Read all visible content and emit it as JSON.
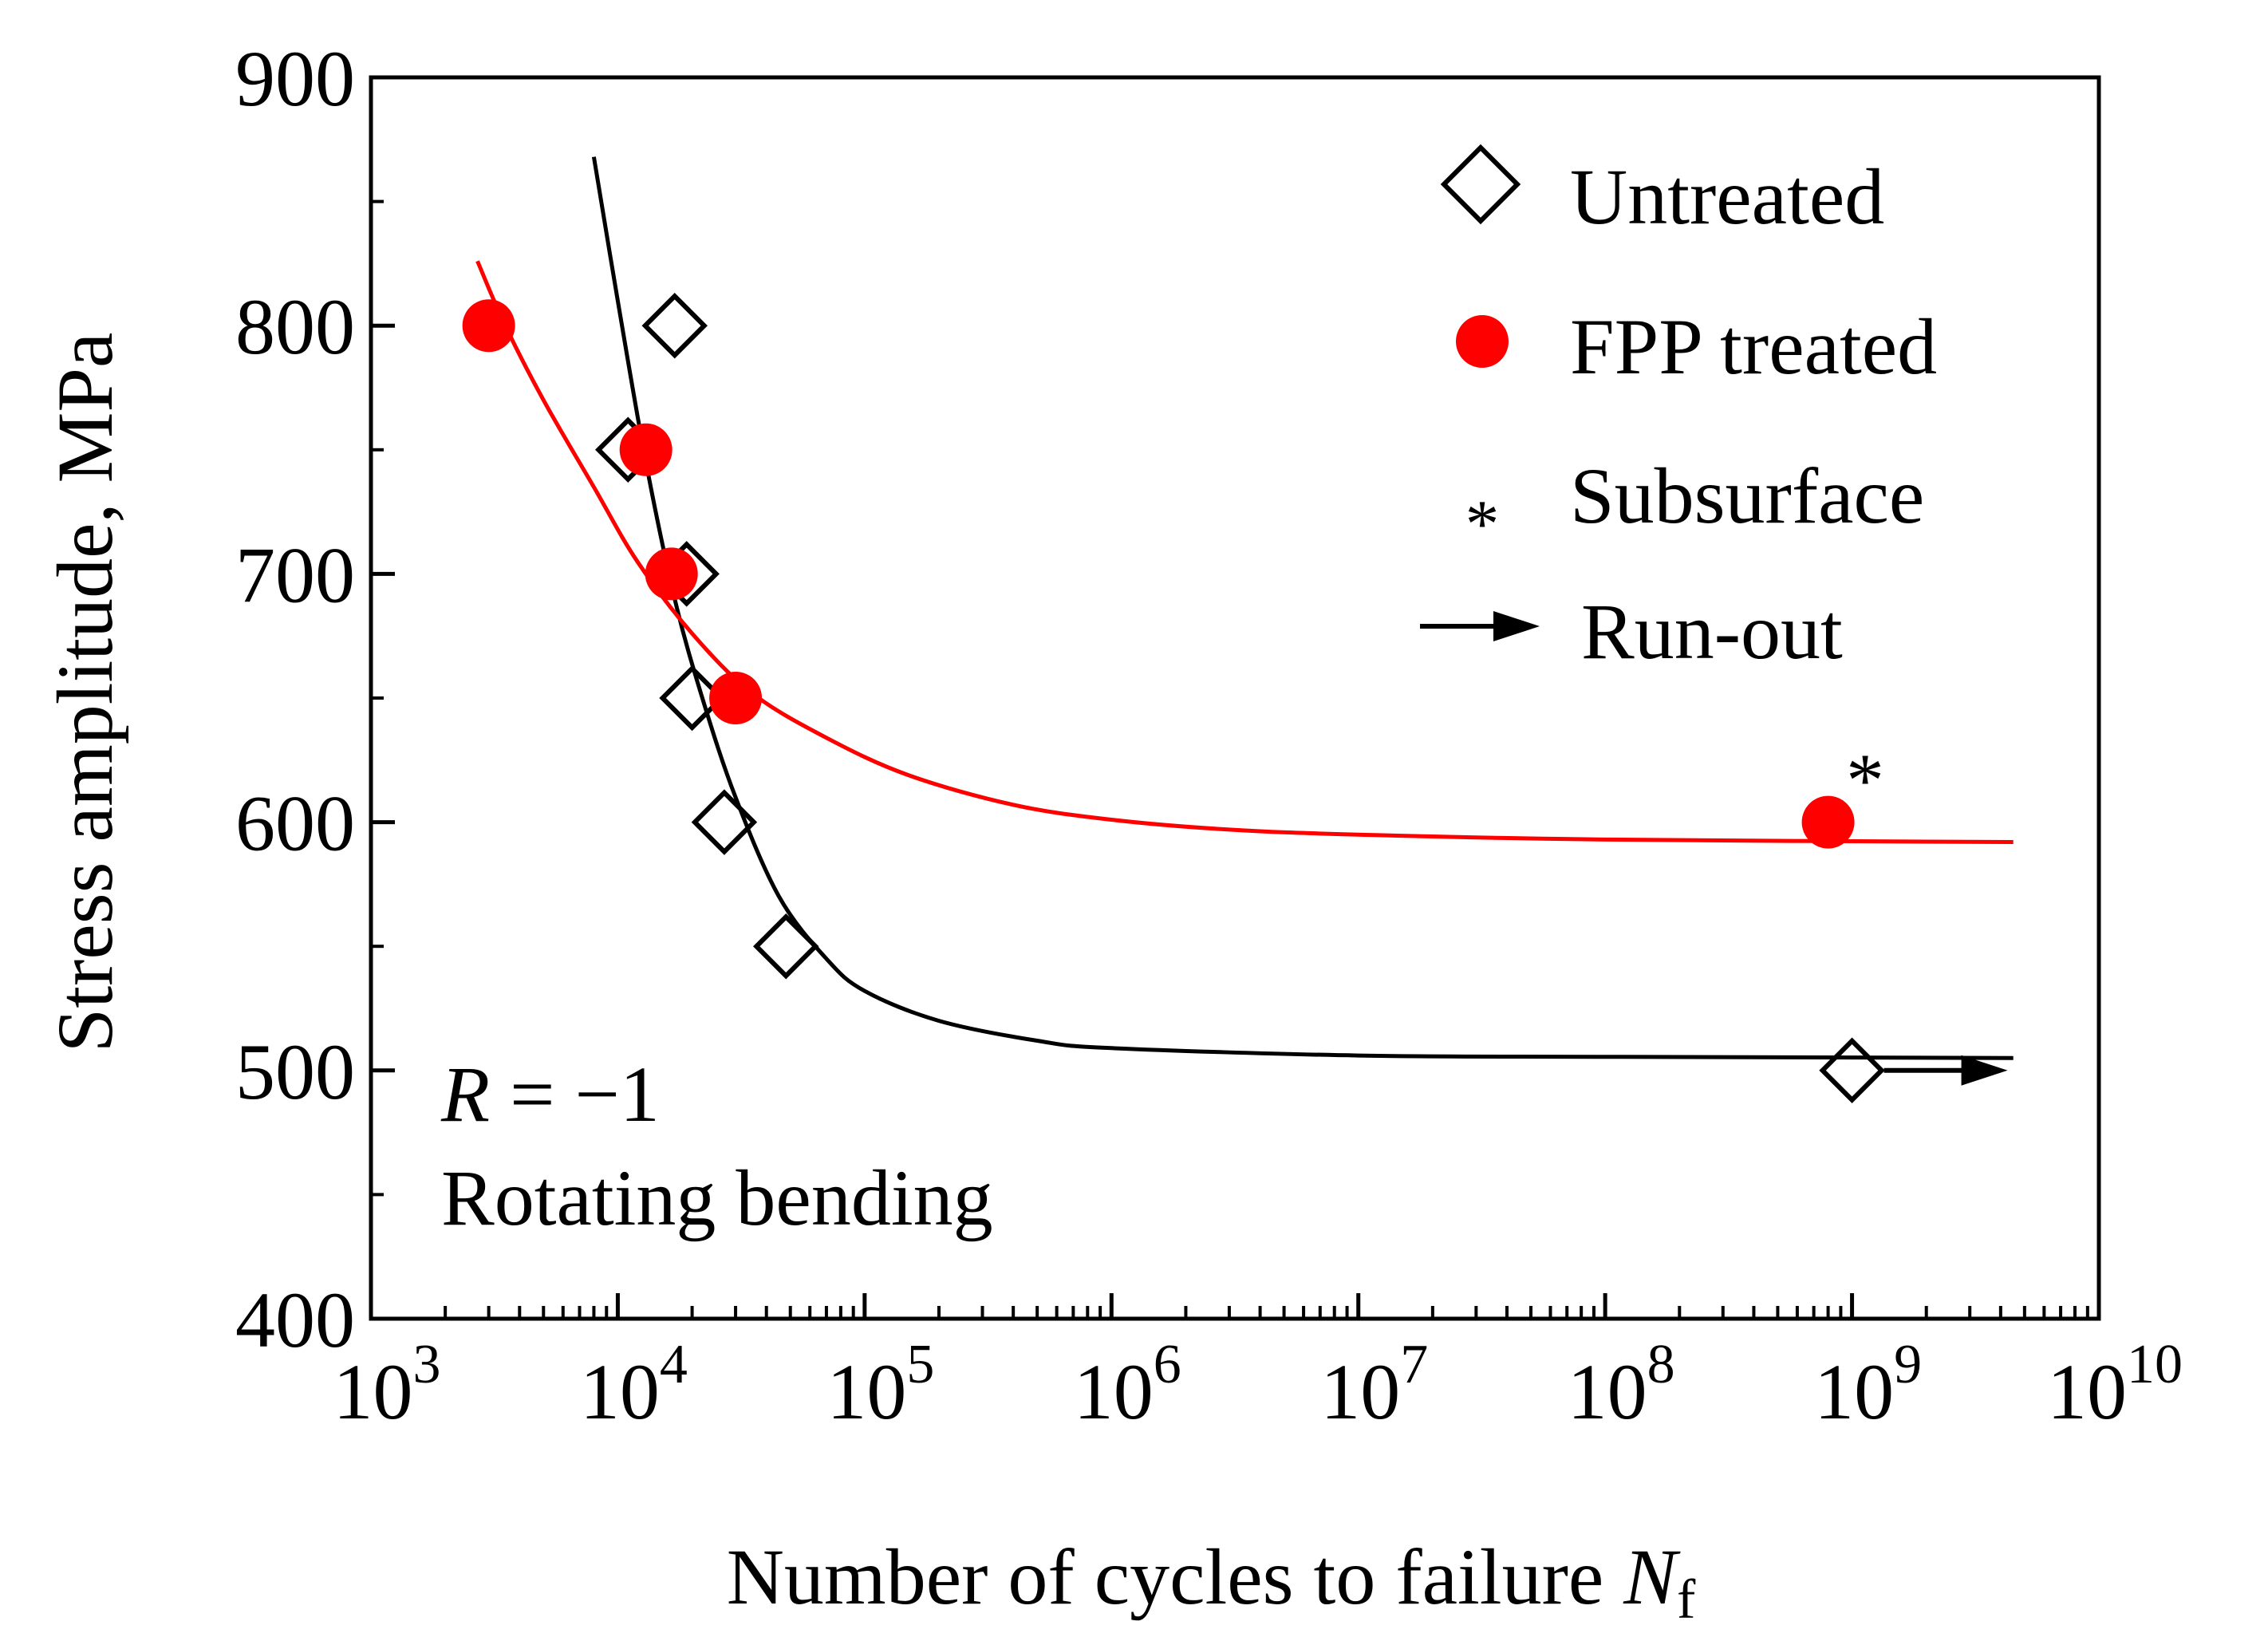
{
  "chart_data": {
    "type": "scatter",
    "title": "",
    "xlabel": "Number of cycles to failure",
    "xlabel_symbol": "N",
    "xlabel_subscript": "f",
    "ylabel": "Stress amplitude, MPa",
    "xscale": "log",
    "xlim": [
      1000,
      10000000000
    ],
    "ylim": [
      400,
      900
    ],
    "x_ticks": [
      {
        "mantissa": "10",
        "exp": "3",
        "value": 1000
      },
      {
        "mantissa": "10",
        "exp": "4",
        "value": 10000
      },
      {
        "mantissa": "10",
        "exp": "5",
        "value": 100000
      },
      {
        "mantissa": "10",
        "exp": "6",
        "value": 1000000
      },
      {
        "mantissa": "10",
        "exp": "7",
        "value": 10000000
      },
      {
        "mantissa": "10",
        "exp": "8",
        "value": 100000000
      },
      {
        "mantissa": "10",
        "exp": "9",
        "value": 1000000000
      },
      {
        "mantissa": "10",
        "exp": "10",
        "value": 10000000000
      }
    ],
    "y_ticks": [
      {
        "label": "400",
        "value": 400
      },
      {
        "label": "500",
        "value": 500
      },
      {
        "label": "600",
        "value": 600
      },
      {
        "label": "700",
        "value": 700
      },
      {
        "label": "800",
        "value": 800
      },
      {
        "label": "900",
        "value": 900
      }
    ],
    "y_minor_ticks": [
      450,
      550,
      650,
      750,
      850
    ],
    "legend_position": "top-right",
    "series": [
      {
        "name": "Untreated",
        "marker": "diamond-open",
        "color": "#000000",
        "points": [
          {
            "x": 17000,
            "y": 800
          },
          {
            "x": 11000,
            "y": 750
          },
          {
            "x": 19000,
            "y": 700
          },
          {
            "x": 20000,
            "y": 650
          },
          {
            "x": 27000,
            "y": 600
          },
          {
            "x": 48000,
            "y": 550
          },
          {
            "x": 1000000000,
            "y": 500,
            "runout": true
          }
        ]
      },
      {
        "name": "FPP treated",
        "marker": "circle-filled",
        "color": "#ff0000",
        "points": [
          {
            "x": 3000,
            "y": 800
          },
          {
            "x": 13000,
            "y": 750
          },
          {
            "x": 16500,
            "y": 700
          },
          {
            "x": 30000,
            "y": 650
          },
          {
            "x": 800000000,
            "y": 600,
            "subsurface": true
          }
        ]
      }
    ],
    "fit_curves": [
      {
        "name": "Untreated fit",
        "color": "#000000",
        "points": [
          {
            "x": 8000,
            "y": 868
          },
          {
            "x": 10000,
            "y": 810
          },
          {
            "x": 13000,
            "y": 745
          },
          {
            "x": 17000,
            "y": 690
          },
          {
            "x": 22000,
            "y": 650
          },
          {
            "x": 30000,
            "y": 610
          },
          {
            "x": 45000,
            "y": 570
          },
          {
            "x": 70000,
            "y": 545
          },
          {
            "x": 100000,
            "y": 532
          },
          {
            "x": 200000,
            "y": 520
          },
          {
            "x": 500000,
            "y": 512
          },
          {
            "x": 1000000,
            "y": 509
          },
          {
            "x": 10000000,
            "y": 506
          },
          {
            "x": 100000000,
            "y": 505.5
          },
          {
            "x": 4500000000,
            "y": 505
          }
        ]
      },
      {
        "name": "FPP treated fit",
        "color": "#ff0000",
        "points": [
          {
            "x": 2700,
            "y": 826
          },
          {
            "x": 3500,
            "y": 800
          },
          {
            "x": 5000,
            "y": 770
          },
          {
            "x": 8000,
            "y": 735
          },
          {
            "x": 12000,
            "y": 705
          },
          {
            "x": 20000,
            "y": 676
          },
          {
            "x": 35000,
            "y": 652
          },
          {
            "x": 70000,
            "y": 634
          },
          {
            "x": 150000,
            "y": 619
          },
          {
            "x": 400000,
            "y": 607
          },
          {
            "x": 1000000,
            "y": 601
          },
          {
            "x": 3000000,
            "y": 597
          },
          {
            "x": 10000000,
            "y": 595
          },
          {
            "x": 100000000,
            "y": 593
          },
          {
            "x": 4500000000,
            "y": 592
          }
        ]
      }
    ],
    "legend": [
      {
        "label": "Untreated",
        "marker": "diamond-open"
      },
      {
        "label": "FPP treated",
        "marker": "circle-filled"
      },
      {
        "label": "Subsurface",
        "marker": "asterisk"
      },
      {
        "label": "Run-out",
        "marker": "arrow"
      }
    ],
    "annotations": {
      "ratio_symbol": "R",
      "ratio_rest": " = −1",
      "loading": "Rotating bending",
      "subsurface_mark": "*"
    }
  }
}
